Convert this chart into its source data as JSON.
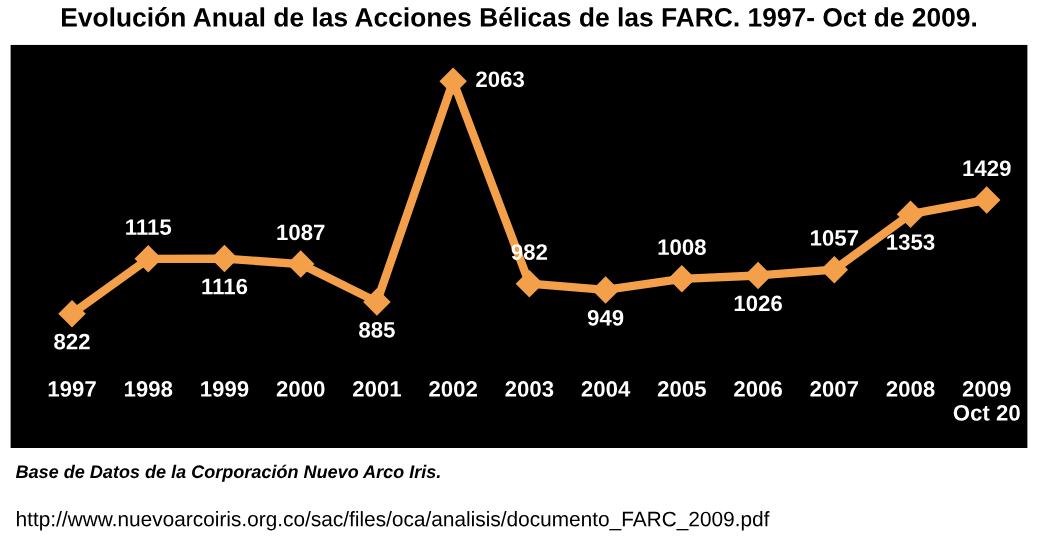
{
  "chart_data": {
    "type": "line",
    "title": "Evolución Anual de las Acciones Bélicas de las FARC. 1997- Oct de 2009.",
    "categories": [
      "1997",
      "1998",
      "1999",
      "2000",
      "2001",
      "2002",
      "2003",
      "2004",
      "2005",
      "2006",
      "2007",
      "2008",
      "2009\nOct 20"
    ],
    "series": [
      {
        "color": "#f4a04a",
        "values": [
          822,
          1115,
          1116,
          1087,
          885,
          2063,
          982,
          949,
          1008,
          1026,
          1057,
          1353,
          1429
        ]
      }
    ],
    "data_labels": true,
    "marker": "diamond",
    "line_style": "solid",
    "annotations": [
      "Base de Datos de la Corporación Nuevo Arco Iris.",
      "http://www.nuevoarcoiris.org.co/sac/files/oca/analisis/documento_FARC_2009.pdf"
    ]
  }
}
